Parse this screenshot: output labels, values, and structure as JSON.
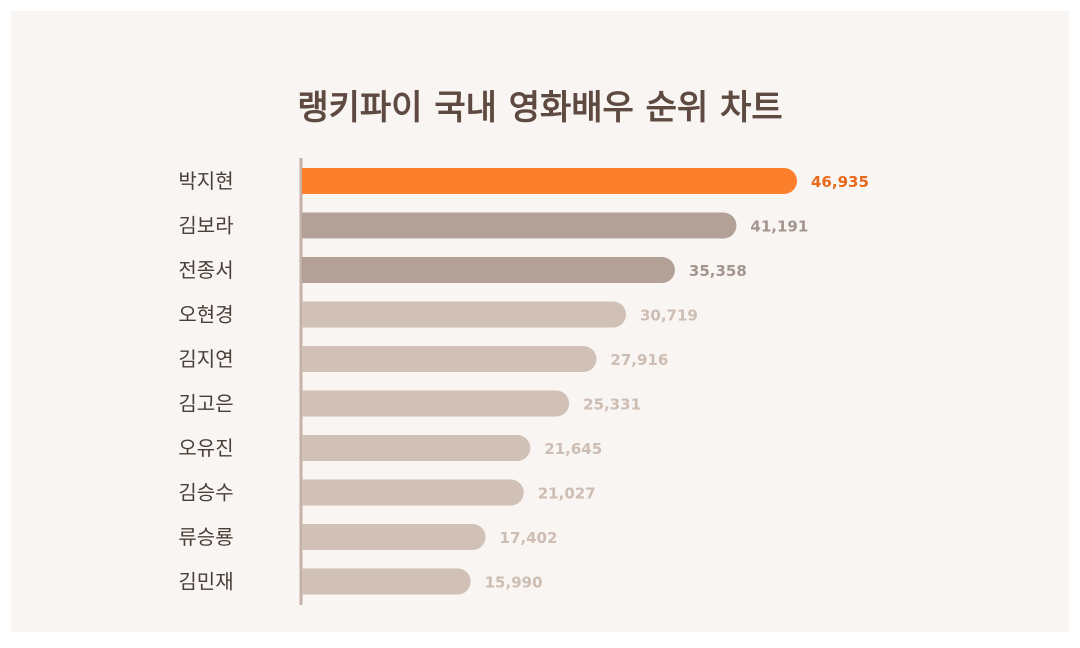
{
  "chart_data": {
    "type": "bar",
    "orientation": "horizontal",
    "title": "랭키파이 국내 영화배우 순위 차트",
    "categories": [
      "박지현",
      "김보라",
      "전종서",
      "오현경",
      "김지연",
      "김고은",
      "오유진",
      "김승수",
      "류승룡",
      "김민재"
    ],
    "values": [
      46935,
      41191,
      35358,
      30719,
      27916,
      25331,
      21645,
      21027,
      17402,
      15990
    ],
    "value_labels": [
      "46,935",
      "41,191",
      "35,358",
      "30,719",
      "27,916",
      "25,331",
      "21,645",
      "21,027",
      "17,402",
      "15,990"
    ],
    "xlim": [
      0,
      48000
    ],
    "grid": false,
    "legend": "none",
    "colors": {
      "rank1": "#fc7f2c",
      "rank2to3": "#b3a198",
      "rest": "#d0c0b6",
      "rank1_label": "#e8691b",
      "rank2to3_label": "#a3958e",
      "rest_label": "#cdbdb3",
      "axis": "#c5b1a6",
      "title": "#5e4a40"
    }
  }
}
